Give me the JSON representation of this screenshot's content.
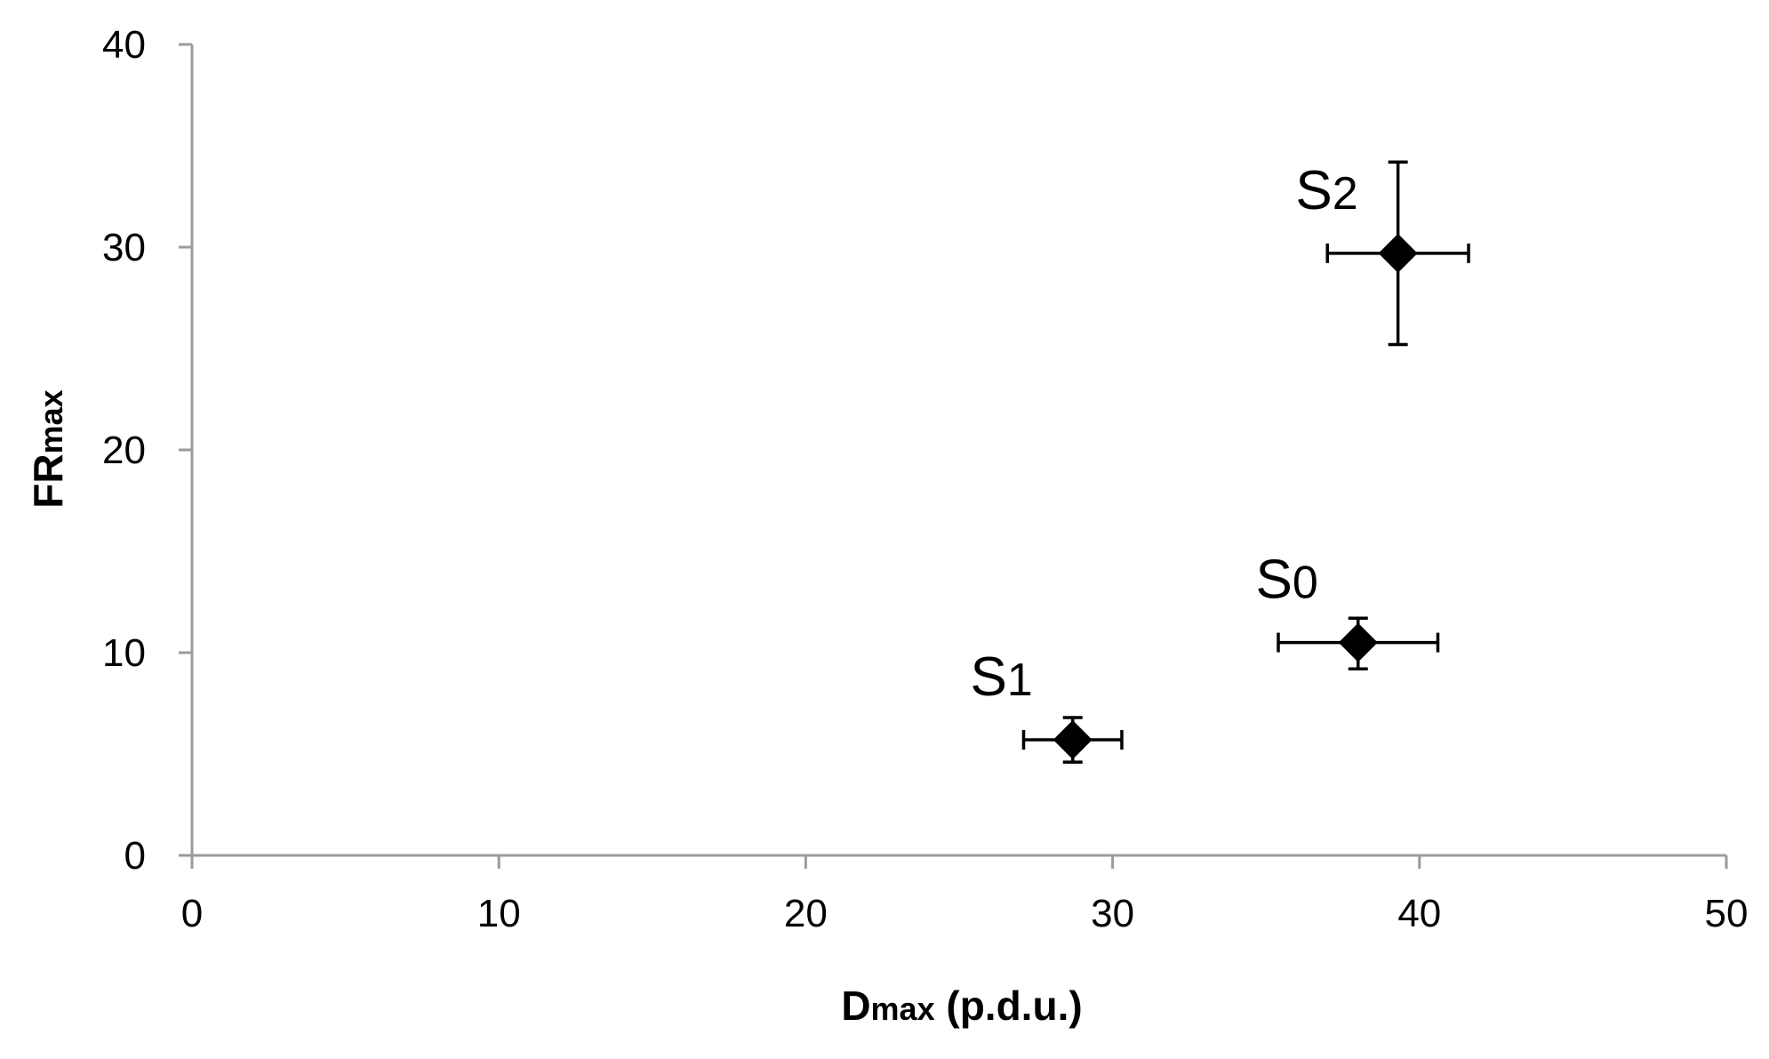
{
  "chart_data": {
    "type": "scatter",
    "xlabel": {
      "main": "D",
      "sub": "max",
      "rest": " (p.d.u.)"
    },
    "ylabel": {
      "main": "FR",
      "sub": "max"
    },
    "xlim": [
      0,
      50
    ],
    "ylim": [
      0,
      40
    ],
    "xticks": [
      0,
      10,
      20,
      30,
      40,
      50
    ],
    "yticks": [
      0,
      10,
      20,
      30,
      40
    ],
    "grid": false,
    "legend": "none",
    "marker": "diamond",
    "marker_color": "#000000",
    "axis_color": "#9b9b9b",
    "points": [
      {
        "label_main": "S",
        "label_sub": "0",
        "x": 38.0,
        "y": 10.5,
        "x_err": [
          2.6,
          2.6
        ],
        "y_err": [
          1.3,
          1.2
        ]
      },
      {
        "label_main": "S",
        "label_sub": "1",
        "x": 28.7,
        "y": 5.7,
        "x_err": [
          1.6,
          1.6
        ],
        "y_err": [
          1.1,
          1.1
        ]
      },
      {
        "label_main": "S",
        "label_sub": "2",
        "x": 39.3,
        "y": 29.7,
        "x_err": [
          2.3,
          2.3
        ],
        "y_err": [
          4.5,
          4.5
        ]
      }
    ]
  }
}
